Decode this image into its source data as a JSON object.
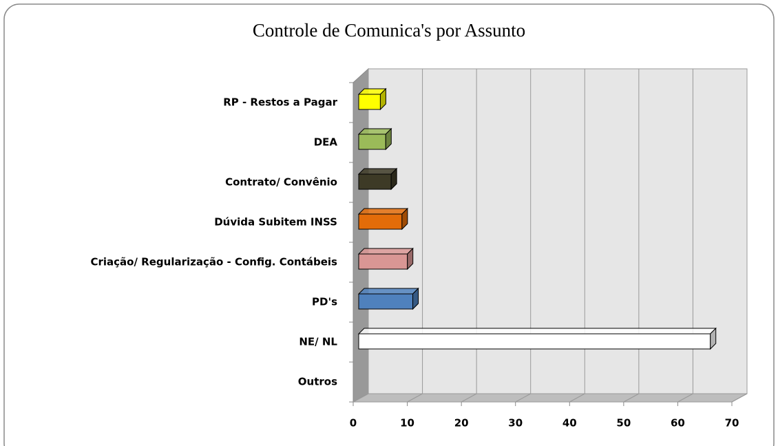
{
  "chart_data": {
    "type": "bar3d_horizontal",
    "title": "Controle de Comunica's por Assunto",
    "categories": [
      "Outros",
      "NE/ NL",
      "PD's",
      "Criação/ Regularização - Config. Contábeis",
      "Dúvida Subitem INSS",
      "Contrato/ Convênio",
      "DEA",
      "RP - Restos a Pagar"
    ],
    "values": [
      0,
      65,
      10,
      9,
      8,
      6,
      5,
      4
    ],
    "colors": [
      "#ffffff",
      "#ffffff",
      "#4f81bd",
      "#d99694",
      "#e36c09",
      "#3d3a26",
      "#9bbb59",
      "#ffff00"
    ],
    "xlim": [
      0,
      70
    ],
    "xticks": [
      0,
      10,
      20,
      30,
      40,
      50,
      60,
      70
    ],
    "grid": true
  }
}
